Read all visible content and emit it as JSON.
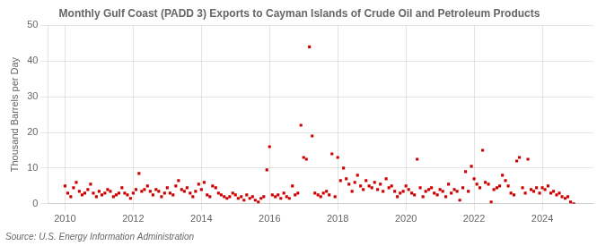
{
  "chart_data": {
    "type": "scatter",
    "title": "Monthly Gulf Coast (PADD 3) Exports to Cayman Islands of Crude Oil and Petroleum Products",
    "ylabel": "Thousand Barrels per Day",
    "annotations": [
      "Source: U.S. Energy Information Administration"
    ],
    "color": "#cc0000",
    "marker": "square",
    "grid": true,
    "xlim": [
      2009.5,
      2025.5
    ],
    "xticks": [
      2010,
      2012,
      2014,
      2016,
      2018,
      2020,
      2022,
      2024
    ],
    "ylim": [
      0,
      50
    ],
    "yticks": [
      0,
      10,
      20,
      30,
      40,
      50
    ],
    "x": [
      2010,
      2010.08,
      2010.17,
      2010.25,
      2010.33,
      2010.42,
      2010.5,
      2010.58,
      2010.67,
      2010.75,
      2010.83,
      2010.92,
      2011,
      2011.08,
      2011.17,
      2011.25,
      2011.33,
      2011.42,
      2011.5,
      2011.58,
      2011.67,
      2011.75,
      2011.83,
      2011.92,
      2012,
      2012.08,
      2012.17,
      2012.25,
      2012.33,
      2012.42,
      2012.5,
      2012.58,
      2012.67,
      2012.75,
      2012.83,
      2012.92,
      2013,
      2013.08,
      2013.17,
      2013.25,
      2013.33,
      2013.42,
      2013.5,
      2013.58,
      2013.67,
      2013.75,
      2013.83,
      2013.92,
      2014,
      2014.08,
      2014.17,
      2014.25,
      2014.33,
      2014.42,
      2014.5,
      2014.58,
      2014.67,
      2014.75,
      2014.83,
      2014.92,
      2015,
      2015.08,
      2015.17,
      2015.25,
      2015.33,
      2015.42,
      2015.5,
      2015.58,
      2015.67,
      2015.75,
      2015.83,
      2015.92,
      2016,
      2016.08,
      2016.17,
      2016.25,
      2016.33,
      2016.42,
      2016.5,
      2016.58,
      2016.67,
      2016.75,
      2016.83,
      2016.92,
      2017,
      2017.08,
      2017.17,
      2017.25,
      2017.33,
      2017.42,
      2017.5,
      2017.58,
      2017.67,
      2017.75,
      2017.83,
      2017.92,
      2018,
      2018.08,
      2018.17,
      2018.25,
      2018.33,
      2018.42,
      2018.5,
      2018.58,
      2018.67,
      2018.75,
      2018.83,
      2018.92,
      2019,
      2019.08,
      2019.17,
      2019.25,
      2019.33,
      2019.42,
      2019.5,
      2019.58,
      2019.67,
      2019.75,
      2019.83,
      2019.92,
      2020,
      2020.08,
      2020.17,
      2020.25,
      2020.33,
      2020.42,
      2020.5,
      2020.58,
      2020.67,
      2020.75,
      2020.83,
      2020.92,
      2021,
      2021.08,
      2021.17,
      2021.25,
      2021.33,
      2021.42,
      2021.5,
      2021.58,
      2021.67,
      2021.75,
      2021.83,
      2021.92,
      2022,
      2022.08,
      2022.17,
      2022.25,
      2022.33,
      2022.42,
      2022.5,
      2022.58,
      2022.67,
      2022.75,
      2022.83,
      2022.92,
      2023,
      2023.08,
      2023.17,
      2023.25,
      2023.33,
      2023.42,
      2023.5,
      2023.58,
      2023.67,
      2023.75,
      2023.83,
      2023.92,
      2024,
      2024.08,
      2024.17,
      2024.25,
      2024.33,
      2024.42,
      2024.5,
      2024.58,
      2024.67,
      2024.75,
      2024.83,
      2024.92
    ],
    "values": [
      5.0,
      3.0,
      2.0,
      4.5,
      6.0,
      3.5,
      2.5,
      3.0,
      4.0,
      5.5,
      3.0,
      2.0,
      3.5,
      2.5,
      3.0,
      4.0,
      3.5,
      2.0,
      2.5,
      3.0,
      4.5,
      3.0,
      2.5,
      1.5,
      3.0,
      4.0,
      8.5,
      3.5,
      4.0,
      5.0,
      3.5,
      2.5,
      4.0,
      3.5,
      2.0,
      3.0,
      4.5,
      3.0,
      2.5,
      5.0,
      6.5,
      4.0,
      3.5,
      4.5,
      3.0,
      2.0,
      3.5,
      5.5,
      4.0,
      6.0,
      2.5,
      2.0,
      5.0,
      4.5,
      3.0,
      2.5,
      2.0,
      1.5,
      2.0,
      3.0,
      2.5,
      1.5,
      2.0,
      1.0,
      2.5,
      1.5,
      2.0,
      1.0,
      0.5,
      1.5,
      2.0,
      9.5,
      16.0,
      2.5,
      2.0,
      2.5,
      1.5,
      3.0,
      2.0,
      1.5,
      5.0,
      2.5,
      3.0,
      22.0,
      13.0,
      12.5,
      44.0,
      19.0,
      3.0,
      2.5,
      2.0,
      3.0,
      3.5,
      2.5,
      14.0,
      2.0,
      13.0,
      6.5,
      10.0,
      7.0,
      5.5,
      3.5,
      6.0,
      8.0,
      5.0,
      4.0,
      6.5,
      5.0,
      4.5,
      6.0,
      4.0,
      5.5,
      3.5,
      7.0,
      4.5,
      5.0,
      3.5,
      2.0,
      3.0,
      3.5,
      5.0,
      4.0,
      3.0,
      2.5,
      12.5,
      4.5,
      2.0,
      3.5,
      4.0,
      4.5,
      3.0,
      2.5,
      4.0,
      3.5,
      2.0,
      5.5,
      3.0,
      4.0,
      3.5,
      1.0,
      4.5,
      9.0,
      3.5,
      10.5,
      7.0,
      5.5,
      4.5,
      15.0,
      6.0,
      5.5,
      0.5,
      4.0,
      4.5,
      5.0,
      8.0,
      6.5,
      5.0,
      3.0,
      2.5,
      12.0,
      13.0,
      4.5,
      3.0,
      12.5,
      4.0,
      3.5,
      4.5,
      3.0,
      4.5,
      4.0,
      5.0,
      3.0,
      3.5,
      2.5,
      3.0,
      2.0,
      1.5,
      2.0,
      0.5,
      0.0
    ]
  }
}
